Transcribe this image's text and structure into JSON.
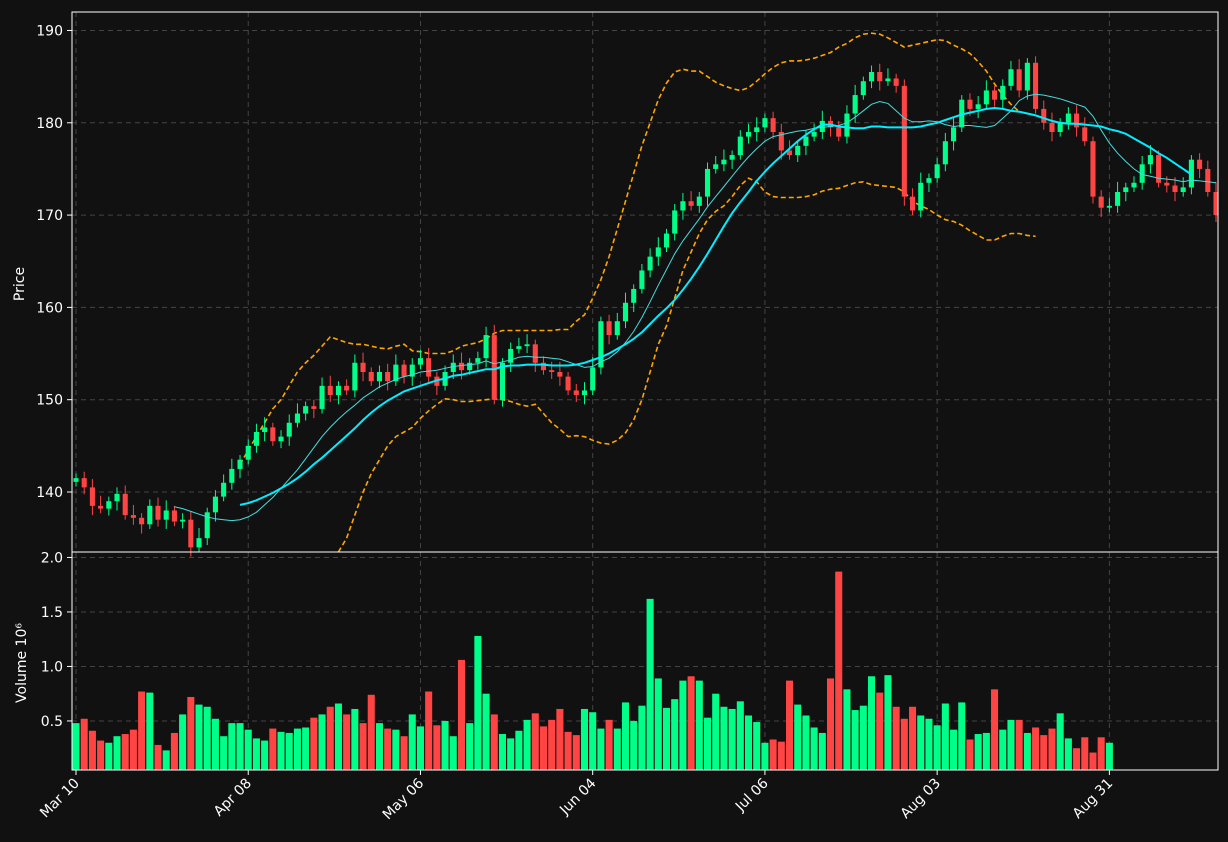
{
  "chart_data": [
    {
      "type": "candlestick",
      "panel": "price",
      "ylabel": "Price",
      "ylim": [
        133.5,
        192
      ],
      "y_ticks": [
        140,
        150,
        160,
        170,
        180,
        190
      ],
      "x_ticks": [
        "Mar 10",
        "Apr 08",
        "May 06",
        "Jun 04",
        "Jul 06",
        "Aug 03",
        "Aug 31"
      ],
      "x_tick_index": [
        0,
        21,
        42,
        63,
        84,
        105,
        126
      ],
      "grid": true,
      "colors": {
        "up": "#00ff88",
        "down": "#ff4444",
        "ma_fast": "#44dddd",
        "ma_slow": "#00eeff",
        "bands": "#ffa500",
        "background": "#111111",
        "grid": "#444444"
      },
      "close": [
        141.5,
        140.5,
        138.5,
        138.2,
        139,
        139.8,
        137.5,
        137.2,
        136.5,
        138.5,
        137,
        138,
        136.8,
        137,
        134,
        135,
        137.8,
        139.5,
        141,
        142.5,
        143.5,
        145,
        146.5,
        147,
        145.5,
        146,
        147.5,
        148.5,
        149.3,
        149,
        151.5,
        150.5,
        151.5,
        151,
        154,
        153,
        152,
        153,
        152,
        153.8,
        152.5,
        153.8,
        154.5,
        152.5,
        151.5,
        153,
        154,
        153.2,
        154,
        154.5,
        157,
        150,
        154,
        155.5,
        155.8,
        156,
        154,
        153.2,
        153,
        152.5,
        151,
        150.5,
        151,
        153.5,
        158.5,
        157,
        158.5,
        160.5,
        162,
        164,
        165.5,
        166.5,
        168,
        170.5,
        171.5,
        171,
        172,
        175,
        175.5,
        176,
        176.5,
        178.5,
        179,
        179.5,
        180.5,
        179,
        177,
        176.5,
        177.5,
        178.5,
        179,
        180.2,
        179.5,
        178.5,
        181,
        183,
        184.5,
        185.5,
        184.5,
        184.8,
        184,
        172,
        170.5,
        173.5,
        174,
        175.5,
        178,
        179.5,
        182.5,
        181.5,
        182,
        183.5,
        182.5,
        184,
        185.8,
        183.5,
        186.5,
        181.5,
        180,
        179,
        180,
        181,
        179.5,
        178,
        172,
        170.8,
        171,
        172.5,
        173,
        173.5,
        175.5,
        176.5,
        173.5,
        173.2,
        172.5,
        173,
        176,
        175,
        172.5,
        170
      ],
      "ma_fast": [
        null,
        null,
        null,
        null,
        null,
        null,
        null,
        null,
        null,
        null,
        null,
        null,
        138.4,
        138.2,
        137.9,
        137.6,
        137.3,
        137.1,
        137.0,
        136.9,
        137.0,
        137.3,
        137.8,
        138.6,
        139.4,
        140.4,
        141.4,
        142.4,
        143.6,
        144.8,
        146.0,
        147.0,
        147.9,
        148.7,
        149.4,
        150.2,
        150.8,
        151.4,
        151.8,
        152.2,
        152.5,
        152.7,
        153.0,
        153.1,
        153.2,
        153.4,
        153.6,
        153.7,
        153.8,
        153.9,
        154.2,
        153.9,
        154.1,
        154.3,
        154.6,
        154.7,
        154.6,
        154.6,
        154.5,
        154.4,
        154.1,
        153.8,
        153.5,
        153.6,
        154.1,
        154.5,
        155.2,
        156.2,
        157.4,
        158.9,
        160.6,
        162.4,
        164.1,
        165.8,
        167.2,
        168.4,
        169.6,
        170.9,
        172.0,
        173.1,
        174.2,
        175.3,
        176.3,
        177.2,
        178.0,
        178.5,
        178.7,
        178.9,
        179.1,
        179.2,
        179.4,
        179.5,
        179.6,
        179.7,
        180.0,
        180.6,
        181.3,
        182.0,
        182.3,
        182.1,
        181.3,
        180.5,
        180.1,
        180.1,
        180.2,
        180.1,
        179.8,
        179.6,
        179.7,
        179.7,
        179.6,
        179.5,
        179.7,
        180.5,
        181.3,
        182.4,
        182.9,
        183.1,
        183.0,
        182.8,
        182.6,
        182.3,
        182.0,
        181.7,
        180.7,
        179.2,
        177.8,
        176.7,
        175.8,
        175.0,
        174.4,
        174.2,
        174.0,
        173.9,
        173.8,
        173.6,
        173.8,
        173.7,
        173.6,
        173.5
      ],
      "ma_slow": [
        null,
        null,
        null,
        null,
        null,
        null,
        null,
        null,
        null,
        null,
        null,
        null,
        null,
        null,
        null,
        null,
        null,
        null,
        null,
        null,
        138.6,
        138.8,
        139.1,
        139.5,
        139.9,
        140.4,
        140.9,
        141.5,
        142.2,
        143.0,
        143.7,
        144.5,
        145.3,
        146.1,
        146.9,
        147.8,
        148.6,
        149.3,
        149.9,
        150.4,
        150.9,
        151.2,
        151.5,
        151.8,
        152.1,
        152.3,
        152.6,
        152.7,
        152.9,
        153.1,
        153.3,
        153.3,
        153.6,
        153.7,
        153.7,
        153.8,
        153.8,
        153.8,
        153.7,
        153.7,
        153.7,
        153.8,
        154.0,
        154.3,
        154.6,
        155.0,
        155.5,
        156.0,
        156.6,
        157.3,
        158.2,
        159.1,
        159.9,
        160.8,
        161.9,
        163.1,
        164.4,
        165.8,
        167.3,
        168.8,
        170.2,
        171.4,
        172.5,
        173.7,
        174.7,
        175.6,
        176.4,
        177.2,
        178.0,
        178.7,
        179.3,
        179.8,
        179.8,
        179.6,
        179.5,
        179.4,
        179.4,
        179.6,
        179.6,
        179.5,
        179.5,
        179.5,
        179.5,
        179.6,
        179.8,
        180.0,
        180.3,
        180.6,
        180.9,
        181.1,
        181.3,
        181.5,
        181.6,
        181.5,
        181.3,
        181.2,
        181.0,
        180.8,
        180.5,
        180.2,
        180.0,
        179.9,
        179.9,
        179.8,
        179.7,
        179.6,
        179.3,
        179.1,
        178.8,
        178.3,
        177.8,
        177.3,
        176.7,
        176.2,
        175.6,
        175.0,
        174.4
      ],
      "upper_band": [
        null,
        null,
        null,
        null,
        null,
        null,
        null,
        null,
        null,
        null,
        null,
        null,
        null,
        null,
        null,
        null,
        null,
        null,
        null,
        null,
        143.0,
        144.5,
        146.0,
        147.5,
        149.0,
        150.0,
        151.5,
        153.0,
        154.0,
        154.8,
        155.8,
        156.8,
        156.5,
        156.2,
        156.0,
        156.0,
        155.8,
        155.6,
        155.5,
        155.8,
        156.0,
        155.3,
        155.2,
        155.0,
        155.0,
        155.0,
        155.3,
        155.8,
        156.0,
        156.2,
        156.6,
        157.2,
        157.5,
        157.5,
        157.5,
        157.5,
        157.5,
        157.5,
        157.5,
        157.6,
        157.6,
        158.5,
        159.2,
        161.0,
        163.0,
        165.5,
        168.5,
        171.5,
        174.5,
        177.5,
        180.0,
        182.5,
        184.3,
        185.5,
        185.8,
        185.6,
        185.6,
        185.0,
        184.4,
        184.0,
        183.7,
        183.5,
        183.8,
        184.5,
        185.3,
        186.0,
        186.5,
        186.7,
        186.7,
        186.8,
        187.0,
        187.3,
        187.6,
        188.2,
        188.6,
        189.2,
        189.6,
        189.7,
        189.6,
        189.2,
        188.7,
        188.2,
        188.4,
        188.6,
        188.8,
        189.0,
        188.9,
        188.4,
        188.0,
        187.5,
        186.6,
        185.6,
        184.2,
        183.0,
        182.0,
        181.2
      ],
      "lower_band": [
        null,
        null,
        null,
        null,
        null,
        null,
        null,
        null,
        null,
        null,
        null,
        null,
        null,
        null,
        null,
        null,
        null,
        null,
        null,
        null,
        null,
        null,
        null,
        null,
        null,
        null,
        null,
        null,
        null,
        null,
        null,
        null,
        133.5,
        135.0,
        137.5,
        140.0,
        142.0,
        143.5,
        145.0,
        146.0,
        146.5,
        147.0,
        148.0,
        148.8,
        149.5,
        150.1,
        150.0,
        149.8,
        149.8,
        149.9,
        150.0,
        150.1,
        150.0,
        149.8,
        149.5,
        149.3,
        149.5,
        148.5,
        147.5,
        146.8,
        146.0,
        146.1,
        146.0,
        145.6,
        145.3,
        145.2,
        145.6,
        146.4,
        147.8,
        150.0,
        153.0,
        156.0,
        158.0,
        161.0,
        164.0,
        166.0,
        168.0,
        169.5,
        170.4,
        171.0,
        172.0,
        173.2,
        174.0,
        173.6,
        172.5,
        172.0,
        171.9,
        171.9,
        171.9,
        172.0,
        172.2,
        172.6,
        172.8,
        172.9,
        173.2,
        173.5,
        173.6,
        173.3,
        173.2,
        173.1,
        173.0,
        172.5,
        171.5,
        171.0,
        170.6,
        170.0,
        169.5,
        169.3,
        168.9,
        168.3,
        167.8,
        167.3,
        167.3,
        167.7,
        168.0,
        168.0,
        167.8,
        167.7
      ]
    },
    {
      "type": "bar",
      "panel": "volume",
      "ylabel": "Volume  10⁶",
      "ylim": [
        0.05,
        2.05
      ],
      "y_ticks": [
        0.5,
        1.0,
        1.5,
        2.0
      ],
      "y_tick_labels": [
        "0.5",
        "1.0",
        "1.5",
        "2.0"
      ],
      "grid": true,
      "volume": [
        0.48,
        0.52,
        0.41,
        0.32,
        0.3,
        0.36,
        0.38,
        0.42,
        0.77,
        0.76,
        0.28,
        0.23,
        0.39,
        0.56,
        0.72,
        0.65,
        0.63,
        0.52,
        0.36,
        0.48,
        0.48,
        0.42,
        0.34,
        0.32,
        0.43,
        0.4,
        0.39,
        0.43,
        0.44,
        0.53,
        0.56,
        0.63,
        0.66,
        0.56,
        0.61,
        0.48,
        0.74,
        0.48,
        0.43,
        0.42,
        0.36,
        0.56,
        0.45,
        0.77,
        0.46,
        0.5,
        0.36,
        1.06,
        0.48,
        1.28,
        0.75,
        0.56,
        0.38,
        0.34,
        0.41,
        0.51,
        0.57,
        0.45,
        0.51,
        0.61,
        0.4,
        0.37,
        0.61,
        0.58,
        0.43,
        0.51,
        0.43,
        0.67,
        0.5,
        0.64,
        1.62,
        0.89,
        0.62,
        0.7,
        0.87,
        0.91,
        0.87,
        0.53,
        0.75,
        0.63,
        0.61,
        0.68,
        0.55,
        0.49,
        0.3,
        0.33,
        0.31,
        0.87,
        0.65,
        0.55,
        0.44,
        0.39,
        0.89,
        1.87,
        0.79,
        0.6,
        0.64,
        0.91,
        0.76,
        0.92,
        0.63,
        0.52,
        0.63,
        0.55,
        0.52,
        0.46,
        0.66,
        0.42,
        0.67,
        0.33,
        0.38,
        0.39,
        0.79,
        0.42,
        0.51,
        0.51,
        0.39,
        0.44,
        0.37,
        0.43,
        0.57,
        0.34,
        0.25,
        0.35,
        0.21,
        0.35,
        0.3
      ]
    }
  ]
}
